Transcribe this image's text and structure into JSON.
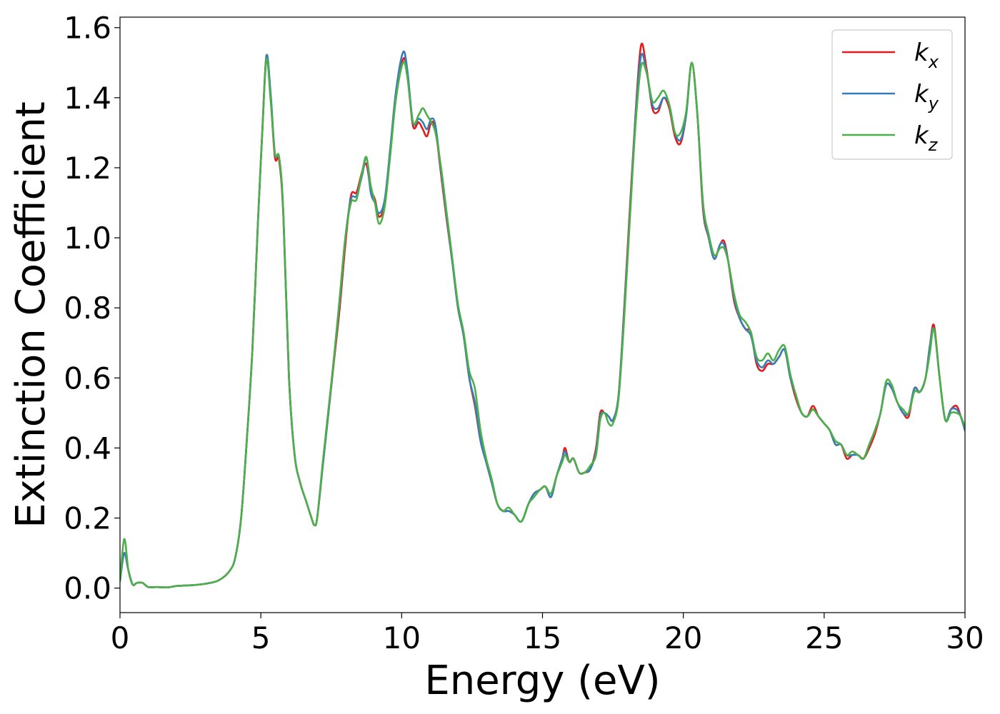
{
  "chart_data": {
    "type": "line",
    "title": "",
    "xlabel": "Energy (eV)",
    "ylabel": "Extinction Coefficient",
    "xlim": [
      0,
      30
    ],
    "ylim": [
      -0.07,
      1.63
    ],
    "xticks": [
      0,
      5,
      10,
      15,
      20,
      25,
      30
    ],
    "yticks": [
      0.0,
      0.2,
      0.4,
      0.6,
      0.8,
      1.0,
      1.2,
      1.4,
      1.6
    ],
    "xtick_labels": [
      "0",
      "5",
      "10",
      "15",
      "20",
      "25",
      "30"
    ],
    "ytick_labels": [
      "0.0",
      "0.2",
      "0.4",
      "0.6",
      "0.8",
      "1.0",
      "1.2",
      "1.4",
      "1.6"
    ],
    "grid": false,
    "legend_position": "top-right",
    "series": [
      {
        "name": "k_x",
        "label_base": "k",
        "label_sub": "x",
        "color": "#e41a1c",
        "x": [
          0,
          0.15,
          0.3,
          0.45,
          0.6,
          0.8,
          1.0,
          1.3,
          1.7,
          2.0,
          2.5,
          3.0,
          3.5,
          3.9,
          4.1,
          4.3,
          4.5,
          4.7,
          4.9,
          5.05,
          5.2,
          5.35,
          5.5,
          5.65,
          5.8,
          6.0,
          6.2,
          6.4,
          6.6,
          6.8,
          6.9,
          7.0,
          7.2,
          7.4,
          7.6,
          7.8,
          8.0,
          8.2,
          8.4,
          8.6,
          8.75,
          8.9,
          9.05,
          9.2,
          9.4,
          9.6,
          9.8,
          10.05,
          10.2,
          10.4,
          10.6,
          10.75,
          10.9,
          11.05,
          11.2,
          11.4,
          11.6,
          11.8,
          12.0,
          12.2,
          12.4,
          12.6,
          12.8,
          13.0,
          13.2,
          13.4,
          13.6,
          13.8,
          14.0,
          14.25,
          14.5,
          14.7,
          14.9,
          15.1,
          15.3,
          15.5,
          15.7,
          15.8,
          15.95,
          16.1,
          16.3,
          16.5,
          16.7,
          16.9,
          17.05,
          17.2,
          17.35,
          17.5,
          17.7,
          17.9,
          18.1,
          18.3,
          18.5,
          18.7,
          18.9,
          19.1,
          19.3,
          19.5,
          19.7,
          19.9,
          20.1,
          20.3,
          20.5,
          20.7,
          20.9,
          21.1,
          21.3,
          21.45,
          21.6,
          21.8,
          22.0,
          22.2,
          22.4,
          22.6,
          22.8,
          23.0,
          23.2,
          23.4,
          23.6,
          23.8,
          24.0,
          24.2,
          24.4,
          24.6,
          24.8,
          25.0,
          25.2,
          25.4,
          25.6,
          25.8,
          26.0,
          26.2,
          26.4,
          26.6,
          26.8,
          27.0,
          27.2,
          27.4,
          27.6,
          27.8,
          28.0,
          28.2,
          28.4,
          28.6,
          28.75,
          28.9,
          29.1,
          29.3,
          29.5,
          29.7,
          29.85,
          30.0
        ],
        "y": [
          0.02,
          0.1,
          0.05,
          0.01,
          0.015,
          0.015,
          0.003,
          0.003,
          0.002,
          0.006,
          0.008,
          0.012,
          0.022,
          0.05,
          0.09,
          0.2,
          0.42,
          0.68,
          1.05,
          1.3,
          1.52,
          1.4,
          1.23,
          1.22,
          1.06,
          0.6,
          0.38,
          0.3,
          0.25,
          0.2,
          0.18,
          0.2,
          0.35,
          0.5,
          0.65,
          0.8,
          0.98,
          1.12,
          1.13,
          1.19,
          1.21,
          1.14,
          1.11,
          1.06,
          1.1,
          1.25,
          1.4,
          1.51,
          1.47,
          1.32,
          1.33,
          1.31,
          1.29,
          1.33,
          1.31,
          1.18,
          1.05,
          0.93,
          0.8,
          0.72,
          0.6,
          0.52,
          0.42,
          0.36,
          0.3,
          0.24,
          0.22,
          0.22,
          0.21,
          0.19,
          0.24,
          0.27,
          0.28,
          0.29,
          0.26,
          0.32,
          0.37,
          0.4,
          0.36,
          0.37,
          0.33,
          0.33,
          0.34,
          0.4,
          0.5,
          0.5,
          0.49,
          0.48,
          0.55,
          0.8,
          1.08,
          1.35,
          1.55,
          1.48,
          1.37,
          1.36,
          1.4,
          1.37,
          1.29,
          1.27,
          1.35,
          1.5,
          1.35,
          1.08,
          1.0,
          0.94,
          0.98,
          0.99,
          0.93,
          0.82,
          0.77,
          0.74,
          0.73,
          0.64,
          0.62,
          0.64,
          0.64,
          0.66,
          0.68,
          0.6,
          0.54,
          0.5,
          0.49,
          0.52,
          0.49,
          0.47,
          0.45,
          0.41,
          0.41,
          0.37,
          0.38,
          0.38,
          0.37,
          0.4,
          0.44,
          0.5,
          0.58,
          0.57,
          0.53,
          0.5,
          0.49,
          0.57,
          0.56,
          0.6,
          0.69,
          0.75,
          0.6,
          0.48,
          0.51,
          0.52,
          0.49,
          0.45
        ]
      },
      {
        "name": "k_y",
        "label_base": "k",
        "label_sub": "y",
        "color": "#377eb8",
        "x": [
          0,
          0.15,
          0.3,
          0.45,
          0.6,
          0.8,
          1.0,
          1.3,
          1.7,
          2.0,
          2.5,
          3.0,
          3.5,
          3.9,
          4.1,
          4.3,
          4.5,
          4.7,
          4.9,
          5.05,
          5.2,
          5.35,
          5.5,
          5.65,
          5.8,
          6.0,
          6.2,
          6.4,
          6.6,
          6.8,
          6.9,
          7.0,
          7.2,
          7.4,
          7.6,
          7.8,
          8.0,
          8.2,
          8.4,
          8.6,
          8.75,
          8.9,
          9.05,
          9.2,
          9.4,
          9.6,
          9.8,
          10.05,
          10.2,
          10.4,
          10.6,
          10.75,
          10.9,
          11.05,
          11.2,
          11.4,
          11.6,
          11.8,
          12.0,
          12.2,
          12.4,
          12.6,
          12.8,
          13.0,
          13.2,
          13.4,
          13.6,
          13.8,
          14.0,
          14.25,
          14.5,
          14.7,
          14.9,
          15.1,
          15.3,
          15.5,
          15.7,
          15.8,
          15.95,
          16.1,
          16.3,
          16.5,
          16.7,
          16.9,
          17.05,
          17.2,
          17.35,
          17.5,
          17.7,
          17.9,
          18.1,
          18.3,
          18.5,
          18.7,
          18.9,
          19.1,
          19.3,
          19.5,
          19.7,
          19.9,
          20.1,
          20.3,
          20.5,
          20.7,
          20.9,
          21.1,
          21.3,
          21.45,
          21.6,
          21.8,
          22.0,
          22.2,
          22.4,
          22.6,
          22.8,
          23.0,
          23.2,
          23.4,
          23.6,
          23.8,
          24.0,
          24.2,
          24.4,
          24.6,
          24.8,
          25.0,
          25.2,
          25.4,
          25.6,
          25.8,
          26.0,
          26.2,
          26.4,
          26.6,
          26.8,
          27.0,
          27.2,
          27.4,
          27.6,
          27.8,
          28.0,
          28.2,
          28.4,
          28.6,
          28.75,
          28.9,
          29.1,
          29.3,
          29.5,
          29.7,
          29.85,
          30.0
        ],
        "y": [
          0.02,
          0.1,
          0.05,
          0.01,
          0.015,
          0.015,
          0.003,
          0.003,
          0.002,
          0.006,
          0.008,
          0.012,
          0.022,
          0.05,
          0.09,
          0.2,
          0.42,
          0.68,
          1.05,
          1.3,
          1.52,
          1.41,
          1.24,
          1.23,
          1.07,
          0.6,
          0.38,
          0.3,
          0.25,
          0.2,
          0.18,
          0.2,
          0.35,
          0.5,
          0.66,
          0.82,
          1.0,
          1.11,
          1.12,
          1.18,
          1.23,
          1.13,
          1.1,
          1.07,
          1.11,
          1.26,
          1.42,
          1.53,
          1.48,
          1.33,
          1.34,
          1.33,
          1.31,
          1.34,
          1.32,
          1.19,
          1.06,
          0.93,
          0.8,
          0.72,
          0.6,
          0.53,
          0.42,
          0.36,
          0.3,
          0.24,
          0.22,
          0.22,
          0.21,
          0.19,
          0.24,
          0.27,
          0.28,
          0.29,
          0.26,
          0.32,
          0.37,
          0.39,
          0.36,
          0.37,
          0.33,
          0.33,
          0.34,
          0.39,
          0.49,
          0.5,
          0.49,
          0.48,
          0.55,
          0.79,
          1.06,
          1.34,
          1.52,
          1.47,
          1.38,
          1.37,
          1.4,
          1.38,
          1.3,
          1.28,
          1.35,
          1.5,
          1.35,
          1.09,
          1.0,
          0.94,
          0.98,
          0.98,
          0.93,
          0.83,
          0.77,
          0.74,
          0.72,
          0.65,
          0.63,
          0.65,
          0.64,
          0.66,
          0.68,
          0.6,
          0.55,
          0.5,
          0.49,
          0.51,
          0.49,
          0.47,
          0.45,
          0.41,
          0.41,
          0.38,
          0.38,
          0.38,
          0.37,
          0.41,
          0.45,
          0.5,
          0.58,
          0.57,
          0.53,
          0.5,
          0.5,
          0.57,
          0.56,
          0.6,
          0.69,
          0.74,
          0.6,
          0.48,
          0.51,
          0.51,
          0.49,
          0.45
        ]
      },
      {
        "name": "k_z",
        "label_base": "k",
        "label_sub": "z",
        "color": "#4daf4a",
        "x": [
          0,
          0.15,
          0.3,
          0.45,
          0.6,
          0.8,
          1.0,
          1.3,
          1.7,
          2.0,
          2.5,
          3.0,
          3.5,
          3.9,
          4.1,
          4.3,
          4.5,
          4.7,
          4.9,
          5.05,
          5.2,
          5.35,
          5.5,
          5.65,
          5.8,
          6.0,
          6.2,
          6.4,
          6.6,
          6.8,
          6.9,
          7.0,
          7.2,
          7.4,
          7.6,
          7.8,
          8.0,
          8.2,
          8.4,
          8.6,
          8.75,
          8.9,
          9.05,
          9.2,
          9.4,
          9.6,
          9.8,
          10.05,
          10.2,
          10.4,
          10.6,
          10.75,
          10.9,
          11.05,
          11.2,
          11.4,
          11.6,
          11.8,
          12.0,
          12.2,
          12.4,
          12.6,
          12.8,
          13.0,
          13.2,
          13.4,
          13.6,
          13.8,
          14.0,
          14.25,
          14.5,
          14.7,
          14.9,
          15.1,
          15.3,
          15.5,
          15.7,
          15.8,
          15.95,
          16.1,
          16.3,
          16.5,
          16.7,
          16.9,
          17.05,
          17.2,
          17.35,
          17.5,
          17.7,
          17.9,
          18.1,
          18.3,
          18.5,
          18.7,
          18.9,
          19.1,
          19.3,
          19.5,
          19.7,
          19.9,
          20.1,
          20.3,
          20.5,
          20.7,
          20.9,
          21.1,
          21.3,
          21.45,
          21.6,
          21.8,
          22.0,
          22.2,
          22.4,
          22.6,
          22.8,
          23.0,
          23.2,
          23.4,
          23.6,
          23.8,
          24.0,
          24.2,
          24.4,
          24.6,
          24.8,
          25.0,
          25.2,
          25.4,
          25.6,
          25.8,
          26.0,
          26.2,
          26.4,
          26.6,
          26.8,
          27.0,
          27.2,
          27.4,
          27.6,
          27.8,
          28.0,
          28.2,
          28.4,
          28.6,
          28.75,
          28.9,
          29.1,
          29.3,
          29.5,
          29.7,
          29.85,
          30.0
        ],
        "y": [
          0.02,
          0.14,
          0.05,
          0.01,
          0.015,
          0.015,
          0.003,
          0.003,
          0.002,
          0.006,
          0.008,
          0.012,
          0.022,
          0.05,
          0.09,
          0.2,
          0.42,
          0.68,
          1.05,
          1.3,
          1.51,
          1.39,
          1.24,
          1.23,
          1.07,
          0.6,
          0.38,
          0.3,
          0.25,
          0.2,
          0.18,
          0.2,
          0.36,
          0.51,
          0.66,
          0.83,
          1.0,
          1.1,
          1.11,
          1.19,
          1.23,
          1.15,
          1.1,
          1.04,
          1.09,
          1.24,
          1.4,
          1.5,
          1.46,
          1.33,
          1.35,
          1.37,
          1.35,
          1.33,
          1.3,
          1.2,
          1.07,
          0.94,
          0.81,
          0.73,
          0.62,
          0.57,
          0.45,
          0.37,
          0.31,
          0.24,
          0.22,
          0.23,
          0.21,
          0.19,
          0.24,
          0.26,
          0.28,
          0.29,
          0.27,
          0.32,
          0.36,
          0.38,
          0.36,
          0.37,
          0.33,
          0.33,
          0.35,
          0.38,
          0.48,
          0.5,
          0.47,
          0.47,
          0.54,
          0.77,
          1.05,
          1.32,
          1.49,
          1.47,
          1.39,
          1.4,
          1.42,
          1.38,
          1.3,
          1.3,
          1.36,
          1.5,
          1.35,
          1.1,
          1.01,
          0.95,
          0.97,
          0.97,
          0.93,
          0.84,
          0.78,
          0.76,
          0.73,
          0.66,
          0.65,
          0.67,
          0.65,
          0.68,
          0.69,
          0.61,
          0.55,
          0.5,
          0.49,
          0.51,
          0.49,
          0.47,
          0.45,
          0.42,
          0.41,
          0.38,
          0.39,
          0.38,
          0.37,
          0.41,
          0.45,
          0.5,
          0.59,
          0.58,
          0.53,
          0.51,
          0.5,
          0.56,
          0.56,
          0.6,
          0.67,
          0.74,
          0.6,
          0.48,
          0.5,
          0.5,
          0.49,
          0.46
        ]
      }
    ]
  }
}
